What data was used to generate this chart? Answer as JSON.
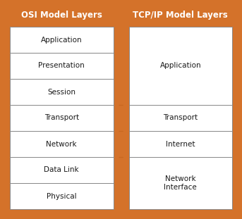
{
  "background_color": "#D4722A",
  "box_bg": "#FFFFFF",
  "box_edge": "#888888",
  "title_color": "#FFFFFF",
  "text_color": "#1a1a1a",
  "osi_title": "OSI Model Layers",
  "tcp_title": "TCP/IP Model Layers",
  "osi_layers": [
    "Application",
    "Presentation",
    "Session",
    "Transport",
    "Network",
    "Data Link",
    "Physical"
  ],
  "tcp_layers": [
    "Application",
    "Transport",
    "Internet",
    "Network\nInterface"
  ],
  "tcp_spans": [
    3,
    1,
    1,
    2
  ],
  "fig_width": 3.43,
  "fig_height": 3.11,
  "dpi": 100
}
